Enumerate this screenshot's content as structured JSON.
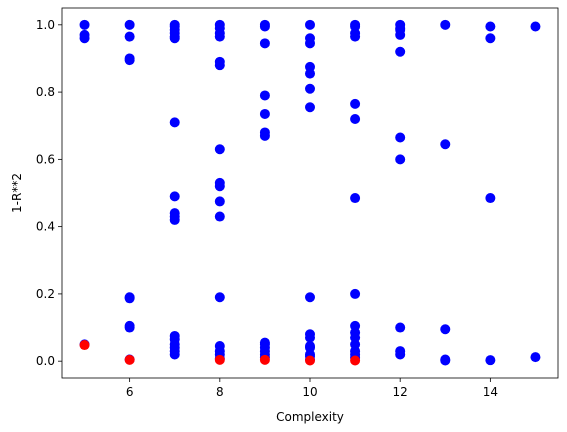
{
  "chart_data": {
    "type": "scatter",
    "title": "",
    "xlabel": "Complexity",
    "ylabel": "1-R**2",
    "xlim": [
      4.5,
      15.5
    ],
    "ylim": [
      -0.05,
      1.05
    ],
    "x_ticks": [
      6,
      8,
      10,
      12,
      14
    ],
    "y_ticks": [
      0.0,
      0.2,
      0.4,
      0.6,
      0.8,
      1.0
    ],
    "x_tick_labels": [
      "6",
      "8",
      "10",
      "12",
      "14"
    ],
    "y_tick_labels": [
      "0.0",
      "0.2",
      "0.4",
      "0.6",
      "0.8",
      "1.0"
    ],
    "colors": {
      "blue": "#0000ff",
      "red": "#ff0000"
    },
    "series": [
      {
        "color": "#0000ff",
        "points": [
          [
            5,
            1.0
          ],
          [
            5,
            0.97
          ],
          [
            5,
            0.96
          ],
          [
            5,
            0.05
          ],
          [
            6,
            1.0
          ],
          [
            6,
            0.965
          ],
          [
            6,
            0.9
          ],
          [
            6,
            0.895
          ],
          [
            6,
            0.19
          ],
          [
            6,
            0.187
          ],
          [
            6,
            0.105
          ],
          [
            6,
            0.1
          ],
          [
            6,
            0.005
          ],
          [
            7,
            1.0
          ],
          [
            7,
            0.995
          ],
          [
            7,
            0.985
          ],
          [
            7,
            0.975
          ],
          [
            7,
            0.965
          ],
          [
            7,
            0.96
          ],
          [
            7,
            0.71
          ],
          [
            7,
            0.49
          ],
          [
            7,
            0.44
          ],
          [
            7,
            0.43
          ],
          [
            7,
            0.42
          ],
          [
            7,
            0.075
          ],
          [
            7,
            0.065
          ],
          [
            7,
            0.05
          ],
          [
            7,
            0.04
          ],
          [
            7,
            0.03
          ],
          [
            7,
            0.02
          ],
          [
            8,
            1.0
          ],
          [
            8,
            0.99
          ],
          [
            8,
            0.975
          ],
          [
            8,
            0.965
          ],
          [
            8,
            0.89
          ],
          [
            8,
            0.88
          ],
          [
            8,
            0.63
          ],
          [
            8,
            0.53
          ],
          [
            8,
            0.52
          ],
          [
            8,
            0.475
          ],
          [
            8,
            0.43
          ],
          [
            8,
            0.19
          ],
          [
            8,
            0.045
          ],
          [
            8,
            0.03
          ],
          [
            8,
            0.02
          ],
          [
            8,
            0.008
          ],
          [
            9,
            1.0
          ],
          [
            9,
            0.995
          ],
          [
            9,
            0.945
          ],
          [
            9,
            0.79
          ],
          [
            9,
            0.735
          ],
          [
            9,
            0.68
          ],
          [
            9,
            0.67
          ],
          [
            9,
            0.055
          ],
          [
            9,
            0.05
          ],
          [
            9,
            0.04
          ],
          [
            9,
            0.03
          ],
          [
            9,
            0.02
          ],
          [
            9,
            0.012
          ],
          [
            10,
            1.0
          ],
          [
            10,
            0.96
          ],
          [
            10,
            0.945
          ],
          [
            10,
            0.875
          ],
          [
            10,
            0.855
          ],
          [
            10,
            0.81
          ],
          [
            10,
            0.755
          ],
          [
            10,
            0.19
          ],
          [
            10,
            0.08
          ],
          [
            10,
            0.07
          ],
          [
            10,
            0.045
          ],
          [
            10,
            0.04
          ],
          [
            10,
            0.02
          ],
          [
            10,
            0.015
          ],
          [
            10,
            0.005
          ],
          [
            11,
            1.0
          ],
          [
            11,
            0.995
          ],
          [
            11,
            0.975
          ],
          [
            11,
            0.965
          ],
          [
            11,
            0.765
          ],
          [
            11,
            0.72
          ],
          [
            11,
            0.485
          ],
          [
            11,
            0.2
          ],
          [
            11,
            0.105
          ],
          [
            11,
            0.085
          ],
          [
            11,
            0.07
          ],
          [
            11,
            0.05
          ],
          [
            11,
            0.03
          ],
          [
            11,
            0.02
          ],
          [
            11,
            0.01
          ],
          [
            12,
            1.0
          ],
          [
            12,
            0.99
          ],
          [
            12,
            0.985
          ],
          [
            12,
            0.97
          ],
          [
            12,
            0.92
          ],
          [
            12,
            0.665
          ],
          [
            12,
            0.6
          ],
          [
            12,
            0.1
          ],
          [
            12,
            0.03
          ],
          [
            12,
            0.02
          ],
          [
            13,
            1.0
          ],
          [
            13,
            0.645
          ],
          [
            13,
            0.095
          ],
          [
            13,
            0.005
          ],
          [
            13,
            0.002
          ],
          [
            14,
            0.995
          ],
          [
            14,
            0.96
          ],
          [
            14,
            0.485
          ],
          [
            14,
            0.003
          ],
          [
            15,
            0.995
          ],
          [
            15,
            0.012
          ]
        ]
      },
      {
        "color": "#ff0000",
        "points": [
          [
            5,
            0.048
          ],
          [
            6,
            0.004
          ],
          [
            8,
            0.004
          ],
          [
            9,
            0.004
          ],
          [
            10,
            0.002
          ],
          [
            11,
            0.002
          ]
        ]
      }
    ]
  }
}
